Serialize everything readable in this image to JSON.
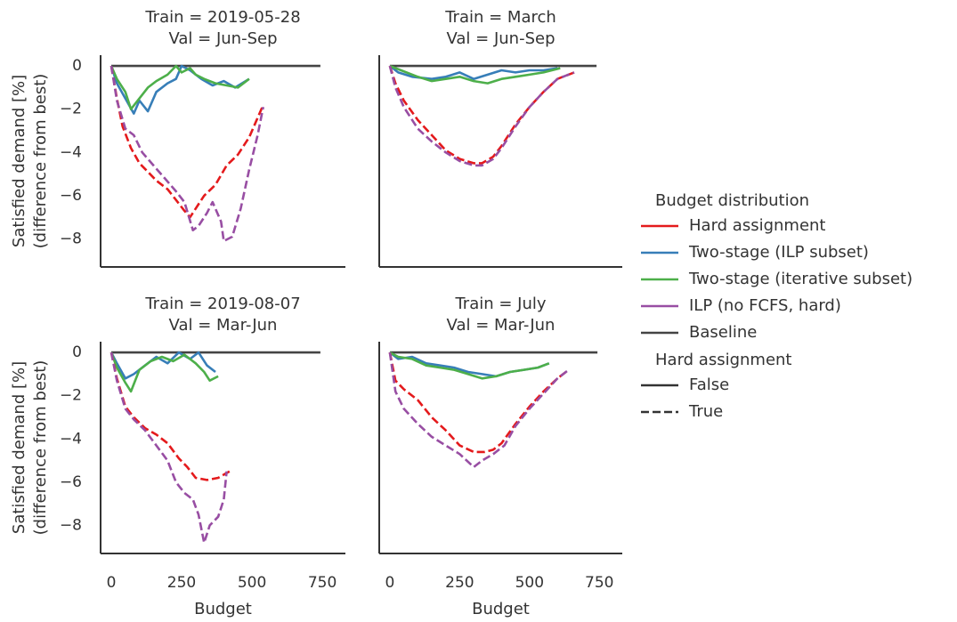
{
  "axes": {
    "xlim": [
      -38,
      832
    ],
    "ylim": [
      -9.3,
      0.5
    ],
    "xticks": [
      0,
      250,
      500,
      750
    ],
    "yticks": [
      {
        "value": 0,
        "label": "0"
      },
      {
        "value": -2,
        "label": "−2"
      },
      {
        "value": -4,
        "label": "−4"
      },
      {
        "value": -6,
        "label": "−6"
      },
      {
        "value": -8,
        "label": "−8"
      }
    ]
  },
  "legend": {
    "groups": [
      {
        "title": "Budget distribution",
        "entries": [
          {
            "name": "Hard assignment",
            "color": "#e41a1c",
            "dashed": false
          },
          {
            "name": "Two-stage (ILP subset)",
            "color": "#377eb8",
            "dashed": false
          },
          {
            "name": "Two-stage (iterative subset)",
            "color": "#4daf4a",
            "dashed": false
          },
          {
            "name": "ILP (no FCFS, hard)",
            "color": "#984ea3",
            "dashed": false
          },
          {
            "name": "Baseline",
            "color": "#444444",
            "dashed": false
          }
        ]
      },
      {
        "title": "Hard assignment",
        "entries": [
          {
            "name": "False",
            "color": "#333333",
            "dashed": false
          },
          {
            "name": "True",
            "color": "#333333",
            "dashed": true
          }
        ]
      }
    ]
  },
  "chart_data": [
    {
      "type": "line",
      "title": [
        "Train = 2019-05-28",
        "Val = Jun-Sep"
      ],
      "ylabel": [
        "Satisfied demand [%]",
        "(difference from best)"
      ],
      "series": [
        {
          "color": "#444444",
          "dashed": false,
          "x": [
            0,
            743
          ],
          "values": [
            0,
            0
          ]
        },
        {
          "color": "#377eb8",
          "dashed": false,
          "x": [
            0,
            20,
            50,
            80,
            100,
            130,
            160,
            200,
            230,
            250,
            280,
            320,
            360,
            400,
            440,
            490
          ],
          "values": [
            0,
            -0.8,
            -1.5,
            -2.2,
            -1.6,
            -2.1,
            -1.2,
            -0.8,
            -0.6,
            0,
            -0.2,
            -0.6,
            -0.9,
            -0.7,
            -1.0,
            -0.6
          ]
        },
        {
          "color": "#4daf4a",
          "dashed": false,
          "x": [
            0,
            20,
            50,
            70,
            100,
            130,
            160,
            200,
            230,
            250,
            280,
            300,
            330,
            370,
            410,
            450,
            490
          ],
          "values": [
            0,
            -0.6,
            -1.2,
            -2.0,
            -1.5,
            -1.0,
            -0.7,
            -0.4,
            0,
            -0.3,
            -0.1,
            -0.4,
            -0.6,
            -0.8,
            -0.9,
            -1.0,
            -0.6
          ]
        },
        {
          "color": "#e41a1c",
          "dashed": true,
          "x": [
            0,
            20,
            40,
            70,
            100,
            130,
            160,
            200,
            230,
            260,
            280,
            300,
            330,
            370,
            410,
            450,
            490,
            540
          ],
          "values": [
            0,
            -1.5,
            -2.8,
            -3.8,
            -4.5,
            -4.9,
            -5.3,
            -5.7,
            -6.2,
            -6.7,
            -7.0,
            -6.6,
            -6.0,
            -5.5,
            -4.6,
            -4.1,
            -3.3,
            -1.8
          ]
        },
        {
          "color": "#984ea3",
          "dashed": true,
          "x": [
            0,
            20,
            50,
            80,
            110,
            150,
            190,
            230,
            260,
            290,
            310,
            340,
            360,
            390,
            400,
            430,
            460,
            490,
            520,
            540
          ],
          "values": [
            0,
            -1.6,
            -2.9,
            -3.2,
            -4.0,
            -4.6,
            -5.2,
            -5.8,
            -6.3,
            -7.6,
            -7.4,
            -6.8,
            -6.3,
            -7.2,
            -8.1,
            -7.9,
            -6.6,
            -4.8,
            -3.2,
            -1.9
          ]
        }
      ]
    },
    {
      "type": "line",
      "title": [
        "Train = March",
        "Val = Jun-Sep"
      ],
      "series": [
        {
          "color": "#444444",
          "dashed": false,
          "x": [
            0,
            740
          ],
          "values": [
            0,
            0
          ]
        },
        {
          "color": "#377eb8",
          "dashed": false,
          "x": [
            0,
            30,
            80,
            150,
            200,
            250,
            300,
            350,
            400,
            450,
            500,
            550,
            600
          ],
          "values": [
            0,
            -0.3,
            -0.5,
            -0.6,
            -0.5,
            -0.3,
            -0.6,
            -0.4,
            -0.2,
            -0.3,
            -0.2,
            -0.2,
            -0.1
          ]
        },
        {
          "color": "#4daf4a",
          "dashed": false,
          "x": [
            0,
            40,
            100,
            150,
            200,
            250,
            300,
            350,
            400,
            450,
            500,
            550,
            610
          ],
          "values": [
            0,
            -0.2,
            -0.5,
            -0.7,
            -0.6,
            -0.5,
            -0.7,
            -0.8,
            -0.6,
            -0.5,
            -0.4,
            -0.3,
            -0.1
          ]
        },
        {
          "color": "#e41a1c",
          "dashed": true,
          "x": [
            0,
            20,
            50,
            100,
            150,
            200,
            250,
            300,
            330,
            370,
            400,
            450,
            500,
            550,
            600,
            660
          ],
          "values": [
            0,
            -0.8,
            -1.6,
            -2.5,
            -3.2,
            -3.9,
            -4.3,
            -4.5,
            -4.5,
            -4.2,
            -3.7,
            -2.7,
            -1.9,
            -1.2,
            -0.6,
            -0.3
          ]
        },
        {
          "color": "#984ea3",
          "dashed": true,
          "x": [
            0,
            20,
            50,
            100,
            150,
            200,
            250,
            300,
            330,
            370,
            400,
            450,
            500,
            550,
            600,
            660
          ],
          "values": [
            0,
            -1.0,
            -1.9,
            -2.9,
            -3.5,
            -4.0,
            -4.4,
            -4.6,
            -4.6,
            -4.3,
            -3.8,
            -2.8,
            -1.9,
            -1.2,
            -0.6,
            -0.3
          ]
        }
      ]
    },
    {
      "type": "line",
      "title": [
        "Train = 2019-08-07",
        "Val = Mar-Jun"
      ],
      "ylabel": [
        "Satisfied demand [%]",
        "(difference from best)"
      ],
      "xlabel": "Budget",
      "series": [
        {
          "color": "#444444",
          "dashed": false,
          "x": [
            0,
            743
          ],
          "values": [
            0,
            0
          ]
        },
        {
          "color": "#377eb8",
          "dashed": false,
          "x": [
            0,
            20,
            50,
            80,
            120,
            160,
            200,
            240,
            280,
            310,
            340,
            370
          ],
          "values": [
            0,
            -0.5,
            -1.2,
            -1.0,
            -0.6,
            -0.2,
            -0.5,
            0,
            -0.3,
            0,
            -0.6,
            -0.9
          ]
        },
        {
          "color": "#4daf4a",
          "dashed": false,
          "x": [
            0,
            20,
            50,
            70,
            100,
            140,
            180,
            220,
            260,
            300,
            330,
            350,
            380
          ],
          "values": [
            0,
            -0.7,
            -1.4,
            -1.8,
            -0.8,
            -0.4,
            -0.2,
            -0.4,
            -0.1,
            -0.5,
            -0.9,
            -1.3,
            -1.1
          ]
        },
        {
          "color": "#e41a1c",
          "dashed": true,
          "x": [
            0,
            20,
            50,
            80,
            120,
            160,
            200,
            240,
            270,
            300,
            340,
            380,
            420
          ],
          "values": [
            0,
            -1.2,
            -2.5,
            -3.0,
            -3.5,
            -3.8,
            -4.2,
            -4.9,
            -5.3,
            -5.8,
            -5.9,
            -5.8,
            -5.5
          ]
        },
        {
          "color": "#984ea3",
          "dashed": true,
          "x": [
            0,
            20,
            50,
            80,
            120,
            160,
            200,
            230,
            260,
            290,
            310,
            330,
            350,
            380,
            400,
            410
          ],
          "values": [
            0,
            -1.3,
            -2.6,
            -3.1,
            -3.6,
            -4.3,
            -5.0,
            -6.0,
            -6.5,
            -6.8,
            -7.5,
            -8.8,
            -8.0,
            -7.6,
            -6.8,
            -5.5
          ]
        }
      ]
    },
    {
      "type": "line",
      "title": [
        "Train = July",
        "Val = Mar-Jun"
      ],
      "xlabel": "Budget",
      "series": [
        {
          "color": "#444444",
          "dashed": false,
          "x": [
            0,
            743
          ],
          "values": [
            0,
            0
          ]
        },
        {
          "color": "#377eb8",
          "dashed": false,
          "x": [
            0,
            30,
            80,
            130,
            180,
            230,
            280,
            330,
            380,
            430,
            480,
            530,
            570
          ],
          "values": [
            0,
            -0.3,
            -0.2,
            -0.5,
            -0.6,
            -0.7,
            -0.9,
            -1.0,
            -1.1,
            -0.9,
            -0.8,
            -0.7,
            -0.5
          ]
        },
        {
          "color": "#4daf4a",
          "dashed": false,
          "x": [
            0,
            30,
            80,
            130,
            180,
            230,
            280,
            330,
            380,
            430,
            480,
            530,
            570
          ],
          "values": [
            0,
            -0.2,
            -0.3,
            -0.6,
            -0.7,
            -0.8,
            -1.0,
            -1.2,
            -1.1,
            -0.9,
            -0.8,
            -0.7,
            -0.5
          ]
        },
        {
          "color": "#e41a1c",
          "dashed": true,
          "x": [
            0,
            20,
            50,
            100,
            150,
            200,
            250,
            300,
            340,
            370,
            400,
            450,
            500,
            550,
            600,
            640
          ],
          "values": [
            0,
            -1.3,
            -1.7,
            -2.2,
            -3.0,
            -3.6,
            -4.3,
            -4.6,
            -4.6,
            -4.5,
            -4.2,
            -3.3,
            -2.5,
            -1.8,
            -1.2,
            -0.8
          ]
        },
        {
          "color": "#984ea3",
          "dashed": true,
          "x": [
            0,
            20,
            50,
            100,
            150,
            200,
            250,
            300,
            330,
            370,
            410,
            450,
            500,
            550,
            600,
            640
          ],
          "values": [
            0,
            -1.8,
            -2.6,
            -3.3,
            -3.9,
            -4.3,
            -4.7,
            -5.3,
            -5.0,
            -4.7,
            -4.3,
            -3.4,
            -2.6,
            -1.9,
            -1.2,
            -0.8
          ]
        }
      ]
    }
  ]
}
